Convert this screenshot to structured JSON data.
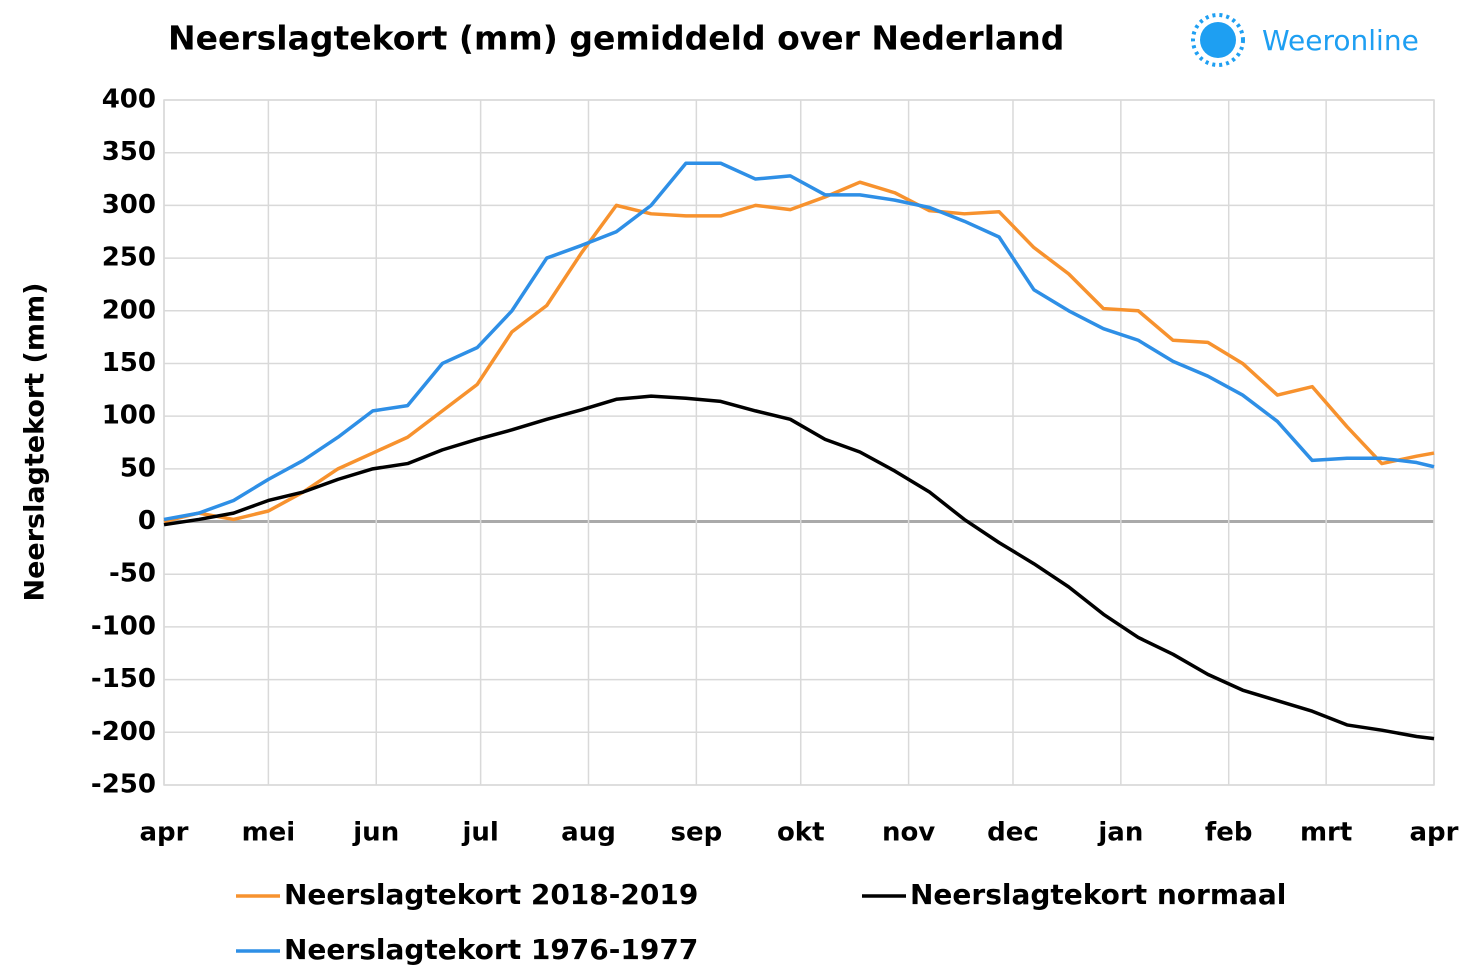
{
  "brand": "Weeronline",
  "chart_data": {
    "type": "line",
    "title": "Neerslagtekort (mm) gemiddeld over Nederland",
    "y_label": "Neerslagtekort  (mm)",
    "x": [
      0,
      10,
      20,
      30,
      40,
      50,
      60,
      70,
      80,
      90,
      100,
      110,
      120,
      130,
      140,
      150,
      160,
      170,
      180,
      190,
      200,
      210,
      220,
      230,
      240,
      250,
      260,
      270,
      280,
      290,
      300,
      310,
      320,
      330,
      340,
      350,
      360,
      365
    ],
    "xlim": [
      0,
      365
    ],
    "xticks": [
      {
        "value": 0,
        "label": "apr"
      },
      {
        "value": 30,
        "label": "mei"
      },
      {
        "value": 61,
        "label": "jun"
      },
      {
        "value": 91,
        "label": "jul"
      },
      {
        "value": 122,
        "label": "aug"
      },
      {
        "value": 153,
        "label": "sep"
      },
      {
        "value": 183,
        "label": "okt"
      },
      {
        "value": 214,
        "label": "nov"
      },
      {
        "value": 244,
        "label": "dec"
      },
      {
        "value": 275,
        "label": "jan"
      },
      {
        "value": 306,
        "label": "feb"
      },
      {
        "value": 334,
        "label": "mrt"
      },
      {
        "value": 365,
        "label": "apr"
      }
    ],
    "ylim": [
      -250,
      400
    ],
    "yticks": [
      -250,
      -200,
      -150,
      -100,
      -50,
      0,
      50,
      100,
      150,
      200,
      250,
      300,
      350,
      400
    ],
    "grid": true,
    "legend": "bottom",
    "series": [
      {
        "name": "Neerslagtekort 2018-2019",
        "color": "#f7922e",
        "values": [
          0,
          8,
          2,
          10,
          28,
          50,
          65,
          80,
          105,
          130,
          180,
          205,
          255,
          300,
          292,
          290,
          290,
          300,
          296,
          308,
          322,
          312,
          295,
          292,
          294,
          260,
          235,
          202,
          200,
          172,
          170,
          150,
          120,
          128,
          90,
          55,
          62,
          65
        ]
      },
      {
        "name": "Neerslagtekort normaal",
        "color": "#000000",
        "values": [
          -3,
          2,
          8,
          20,
          28,
          40,
          50,
          55,
          68,
          78,
          87,
          97,
          106,
          116,
          119,
          117,
          114,
          105,
          97,
          78,
          66,
          48,
          28,
          2,
          -20,
          -40,
          -62,
          -88,
          -110,
          -126,
          -145,
          -160,
          -170,
          -180,
          -193,
          -198,
          -204,
          -206
        ]
      },
      {
        "name": "Neerslagtekort 1976-1977",
        "color": "#2e8fe6",
        "values": [
          2,
          8,
          20,
          40,
          58,
          80,
          105,
          110,
          150,
          165,
          200,
          250,
          262,
          275,
          300,
          340,
          340,
          325,
          328,
          310,
          310,
          305,
          298,
          285,
          270,
          220,
          200,
          183,
          172,
          152,
          138,
          120,
          95,
          58,
          60,
          60,
          56,
          52
        ]
      }
    ]
  }
}
